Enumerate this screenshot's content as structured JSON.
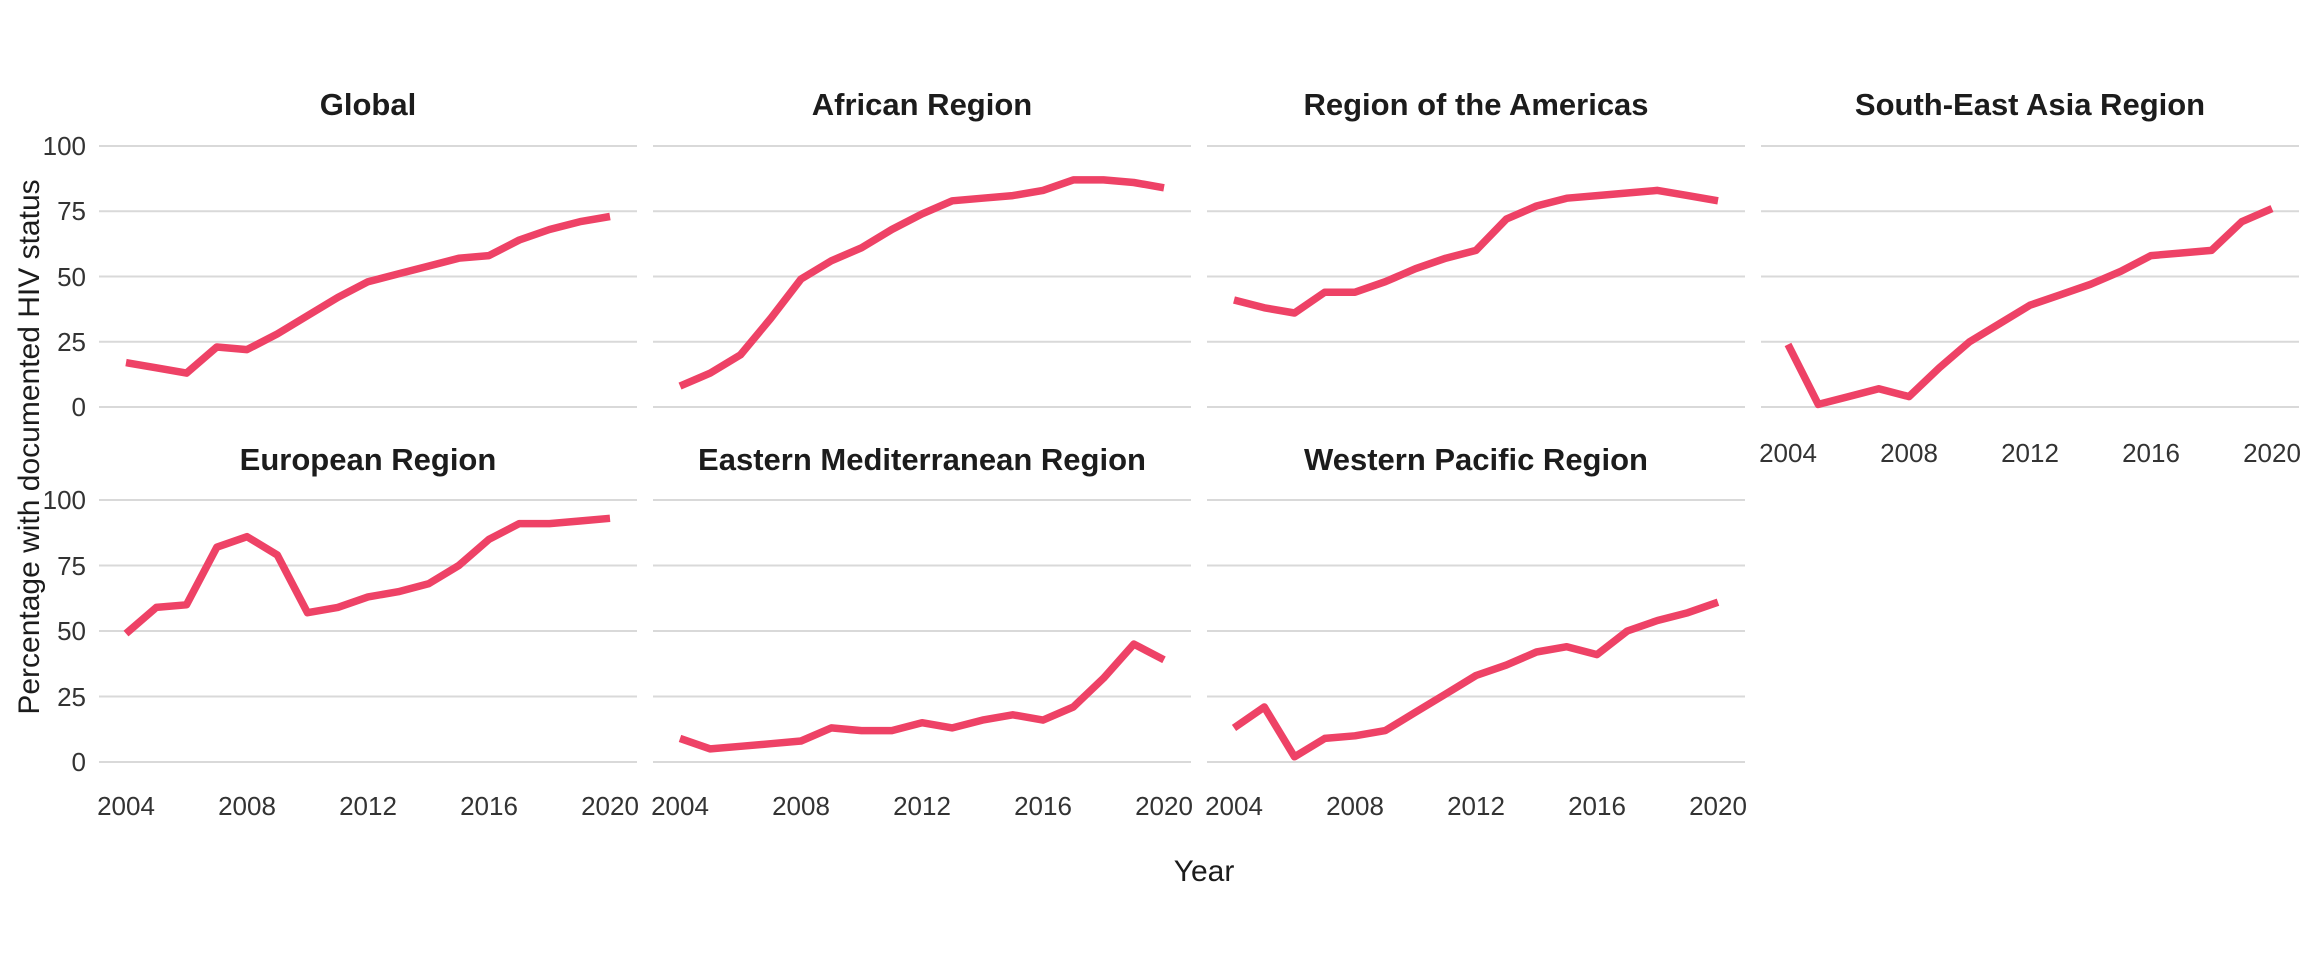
{
  "chart_data": {
    "type": "line",
    "title": "",
    "xlabel": "Year",
    "ylabel": "Percentage with documented HIV status",
    "x": [
      2004,
      2005,
      2006,
      2007,
      2008,
      2009,
      2010,
      2011,
      2012,
      2013,
      2014,
      2015,
      2016,
      2017,
      2018,
      2019,
      2020
    ],
    "x_ticks": [
      "2004",
      "2008",
      "2012",
      "2016",
      "2020"
    ],
    "y_ticks": [
      "100",
      "75",
      "50",
      "25",
      "0"
    ],
    "ylim": [
      0,
      100
    ],
    "grid": "horizontal-major-only",
    "legend_position": "none",
    "line_color": "#EE4266",
    "gridline_color": "#D9D9D9",
    "series": [
      {
        "name": "Global",
        "values": [
          17,
          15,
          13,
          23,
          22,
          28,
          35,
          42,
          48,
          51,
          54,
          57,
          58,
          64,
          68,
          71,
          73
        ]
      },
      {
        "name": "African Region",
        "values": [
          8,
          13,
          20,
          34,
          49,
          56,
          61,
          68,
          74,
          79,
          80,
          81,
          83,
          87,
          87,
          86,
          84
        ]
      },
      {
        "name": "Region of the Americas",
        "values": [
          41,
          38,
          36,
          44,
          44,
          48,
          53,
          57,
          60,
          72,
          77,
          80,
          81,
          82,
          83,
          81,
          79
        ]
      },
      {
        "name": "South-East Asia Region",
        "values": [
          24,
          1,
          4,
          7,
          4,
          15,
          25,
          32,
          39,
          43,
          47,
          52,
          58,
          59,
          60,
          71,
          76
        ]
      },
      {
        "name": "European Region",
        "values": [
          49,
          59,
          60,
          82,
          86,
          79,
          57,
          59,
          63,
          65,
          68,
          75,
          85,
          91,
          91,
          92,
          93
        ]
      },
      {
        "name": "Eastern Mediterranean Region",
        "values": [
          9,
          5,
          6,
          7,
          8,
          13,
          12,
          12,
          15,
          13,
          16,
          18,
          16,
          21,
          32,
          45,
          39
        ]
      },
      {
        "name": "Western Pacific Region",
        "values": [
          13,
          21,
          2,
          9,
          10,
          12,
          19,
          26,
          33,
          37,
          42,
          44,
          41,
          50,
          54,
          57,
          61
        ]
      }
    ]
  }
}
